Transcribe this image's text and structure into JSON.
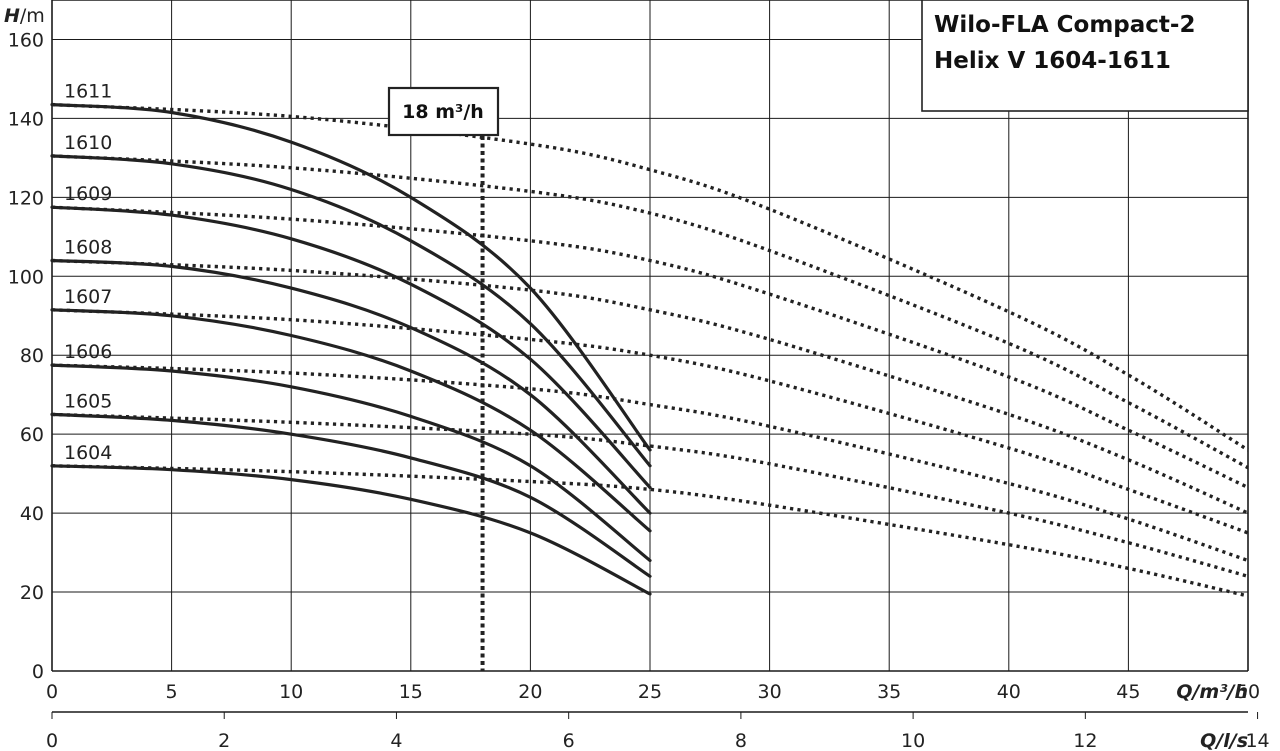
{
  "chart_data": {
    "type": "line",
    "title_lines": [
      "Wilo-FLA Compact-2",
      "Helix V 1604-1611"
    ],
    "ylabel": {
      "symbol": "H",
      "unit": "/m"
    },
    "xlabel": {
      "symbol": "Q",
      "unit": "/m³/h"
    },
    "x2label": {
      "symbol": "Q",
      "unit": "/l/s"
    },
    "xlim": [
      0,
      50
    ],
    "ylim": [
      0,
      170
    ],
    "x_ticks": [
      0,
      5,
      10,
      15,
      20,
      25,
      30,
      35,
      40,
      45,
      50
    ],
    "y_ticks": [
      0,
      20,
      40,
      60,
      80,
      100,
      120,
      140,
      160
    ],
    "x2_ticks": [
      0,
      2,
      4,
      6,
      8,
      10,
      12,
      14
    ],
    "grid": true,
    "marker": {
      "x": 18,
      "label": "18 m³/h"
    },
    "series": [
      {
        "name": "1604",
        "solid": [
          [
            0,
            52
          ],
          [
            5,
            51
          ],
          [
            10,
            48.5
          ],
          [
            15,
            43.5
          ],
          [
            20,
            35
          ],
          [
            25,
            19.5
          ]
        ],
        "dotted": [
          [
            0,
            52
          ],
          [
            10,
            50.5
          ],
          [
            20,
            48
          ],
          [
            25,
            46
          ],
          [
            30,
            42
          ],
          [
            40,
            32
          ],
          [
            45,
            26
          ],
          [
            50,
            19
          ]
        ]
      },
      {
        "name": "1605",
        "solid": [
          [
            0,
            65
          ],
          [
            5,
            63.5
          ],
          [
            10,
            60
          ],
          [
            15,
            54
          ],
          [
            20,
            44
          ],
          [
            25,
            24
          ]
        ],
        "dotted": [
          [
            0,
            65
          ],
          [
            10,
            63
          ],
          [
            20,
            60
          ],
          [
            25,
            57
          ],
          [
            30,
            52.5
          ],
          [
            40,
            40
          ],
          [
            45,
            32.5
          ],
          [
            50,
            24
          ]
        ]
      },
      {
        "name": "1606",
        "solid": [
          [
            0,
            77.5
          ],
          [
            5,
            76
          ],
          [
            10,
            72
          ],
          [
            15,
            64.5
          ],
          [
            20,
            52
          ],
          [
            25,
            28
          ]
        ],
        "dotted": [
          [
            0,
            77.5
          ],
          [
            10,
            75.5
          ],
          [
            20,
            71.5
          ],
          [
            25,
            67.5
          ],
          [
            30,
            62
          ],
          [
            40,
            47.5
          ],
          [
            45,
            38.5
          ],
          [
            50,
            28
          ]
        ]
      },
      {
        "name": "1607",
        "solid": [
          [
            0,
            91.5
          ],
          [
            5,
            90
          ],
          [
            10,
            85
          ],
          [
            15,
            76
          ],
          [
            20,
            61
          ],
          [
            25,
            35.5
          ]
        ],
        "dotted": [
          [
            0,
            91.5
          ],
          [
            10,
            89
          ],
          [
            20,
            84
          ],
          [
            25,
            80
          ],
          [
            30,
            73.5
          ],
          [
            40,
            56.5
          ],
          [
            45,
            46
          ],
          [
            50,
            35
          ]
        ]
      },
      {
        "name": "1608",
        "solid": [
          [
            0,
            104
          ],
          [
            5,
            102.5
          ],
          [
            10,
            97
          ],
          [
            15,
            87
          ],
          [
            20,
            70
          ],
          [
            25,
            40
          ]
        ],
        "dotted": [
          [
            0,
            104
          ],
          [
            10,
            101.5
          ],
          [
            20,
            96.5
          ],
          [
            25,
            91.5
          ],
          [
            30,
            84
          ],
          [
            40,
            65
          ],
          [
            45,
            53.5
          ],
          [
            50,
            40
          ]
        ]
      },
      {
        "name": "1609",
        "solid": [
          [
            0,
            117.5
          ],
          [
            5,
            115.5
          ],
          [
            10,
            109.5
          ],
          [
            15,
            98
          ],
          [
            20,
            79
          ],
          [
            25,
            46.5
          ]
        ],
        "dotted": [
          [
            0,
            117.5
          ],
          [
            10,
            114.5
          ],
          [
            20,
            109
          ],
          [
            25,
            104
          ],
          [
            30,
            95.5
          ],
          [
            40,
            74.5
          ],
          [
            45,
            61
          ],
          [
            50,
            46.5
          ]
        ]
      },
      {
        "name": "1610",
        "solid": [
          [
            0,
            130.5
          ],
          [
            5,
            128.5
          ],
          [
            10,
            122
          ],
          [
            15,
            109
          ],
          [
            20,
            88
          ],
          [
            25,
            52
          ]
        ],
        "dotted": [
          [
            0,
            130.5
          ],
          [
            10,
            127.5
          ],
          [
            20,
            121.5
          ],
          [
            25,
            116
          ],
          [
            30,
            106.5
          ],
          [
            40,
            83
          ],
          [
            45,
            68
          ],
          [
            50,
            51.5
          ]
        ]
      },
      {
        "name": "1611",
        "solid": [
          [
            0,
            143.5
          ],
          [
            5,
            141.5
          ],
          [
            10,
            134
          ],
          [
            15,
            120
          ],
          [
            20,
            97
          ],
          [
            25,
            56
          ]
        ],
        "dotted": [
          [
            0,
            143.5
          ],
          [
            10,
            140.5
          ],
          [
            20,
            133.5
          ],
          [
            25,
            127
          ],
          [
            30,
            117
          ],
          [
            40,
            91
          ],
          [
            45,
            75
          ],
          [
            50,
            56
          ]
        ]
      }
    ]
  }
}
